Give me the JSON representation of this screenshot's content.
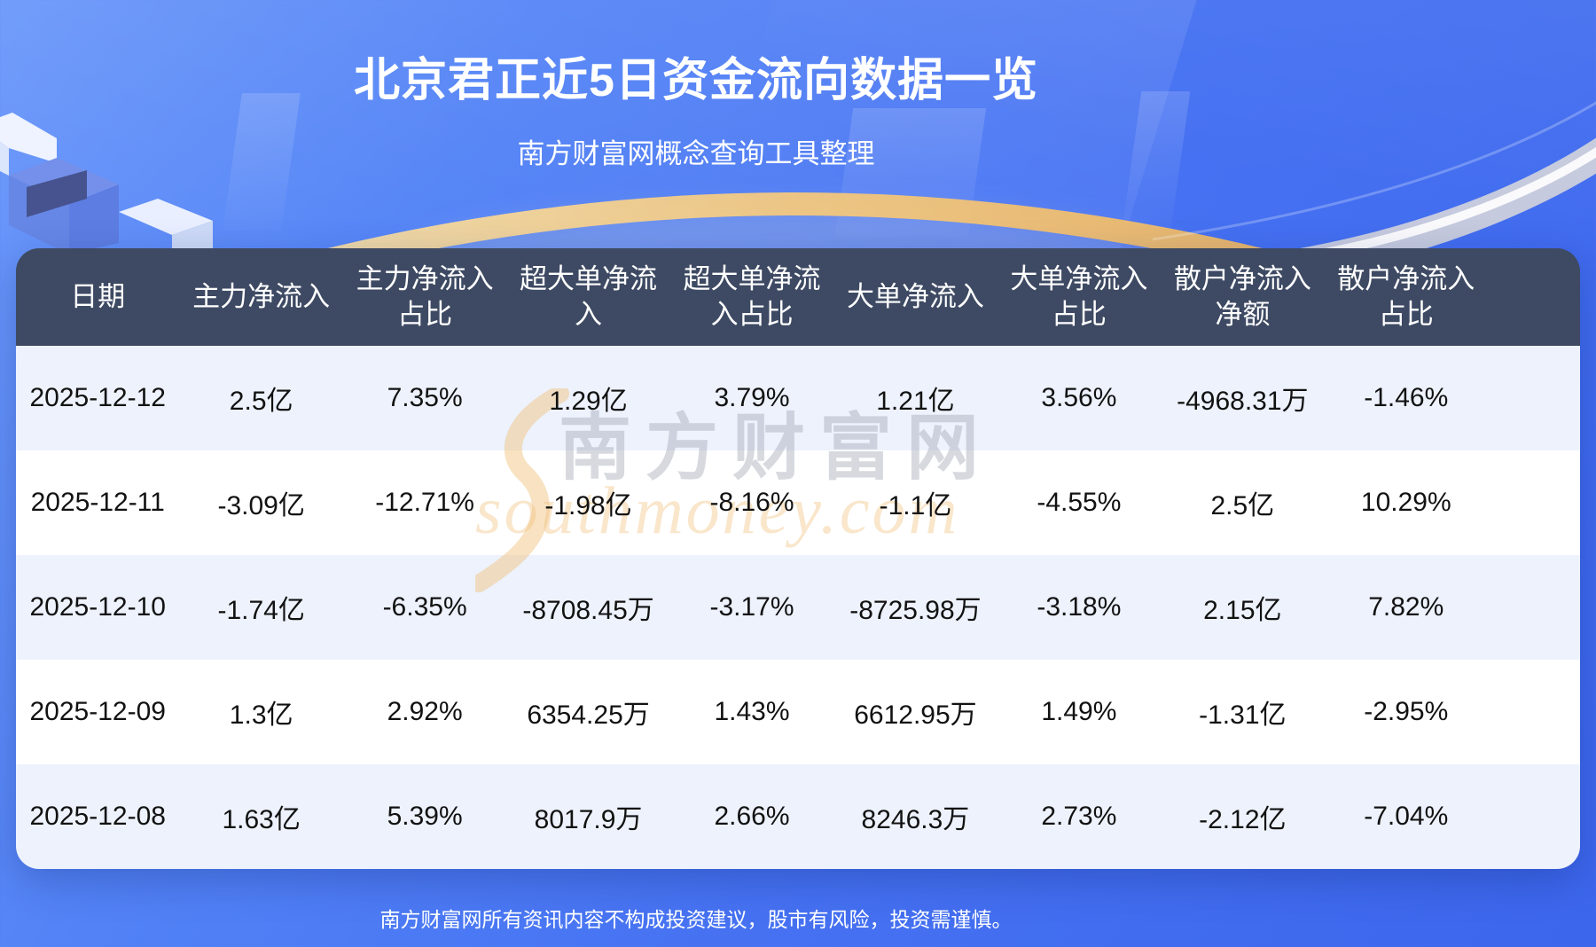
{
  "page": {
    "title": "北京君正近5日资金流向数据一览",
    "subtitle": "南方财富网概念查询工具整理",
    "disclaimer": "南方财富网所有资讯内容不构成投资建议，股市有风险，投资需谨慎。"
  },
  "watermark": {
    "brand": "南方财富网",
    "domain": "southmoney.com"
  },
  "colors": {
    "background_blue": "#4672f2",
    "table_header_bg": "#3e4a63",
    "row_light_bg": "#edf2fc",
    "row_white_bg": "#ffffff",
    "accent_gold": "#f0bc69",
    "text_white": "#ffffff",
    "text_dark": "#121212"
  },
  "table": {
    "display_columns": [
      "日期",
      "主力净流入",
      "主力净流入\n占比",
      "超大单净流\n入",
      "超大单净流\n入占比",
      "大单净流入",
      "大单净流入\n占比",
      "散户净流入\n净额",
      "散户净流入\n占比"
    ]
  },
  "chart_data": {
    "type": "table",
    "title": "北京君正近5日资金流向数据一览",
    "subtitle": "南方财富网概念查询工具整理",
    "columns": [
      "日期",
      "主力净流入",
      "主力净流入占比",
      "超大单净流入",
      "超大单净流入占比",
      "大单净流入",
      "大单净流入占比",
      "散户净流入净额",
      "散户净流入占比"
    ],
    "rows": [
      [
        "2025-12-12",
        "2.5亿",
        "7.35%",
        "1.29亿",
        "3.79%",
        "1.21亿",
        "3.56%",
        "-4968.31万",
        "-1.46%"
      ],
      [
        "2025-12-11",
        "-3.09亿",
        "-12.71%",
        "-1.98亿",
        "-8.16%",
        "-1.1亿",
        "-4.55%",
        "2.5亿",
        "10.29%"
      ],
      [
        "2025-12-10",
        "-1.74亿",
        "-6.35%",
        "-8708.45万",
        "-3.17%",
        "-8725.98万",
        "-3.18%",
        "2.15亿",
        "7.82%"
      ],
      [
        "2025-12-09",
        "1.3亿",
        "2.92%",
        "6354.25万",
        "1.43%",
        "6612.95万",
        "1.49%",
        "-1.31亿",
        "-2.95%"
      ],
      [
        "2025-12-08",
        "1.63亿",
        "5.39%",
        "8017.9万",
        "2.66%",
        "8246.3万",
        "2.73%",
        "-2.12亿",
        "-7.04%"
      ]
    ]
  }
}
